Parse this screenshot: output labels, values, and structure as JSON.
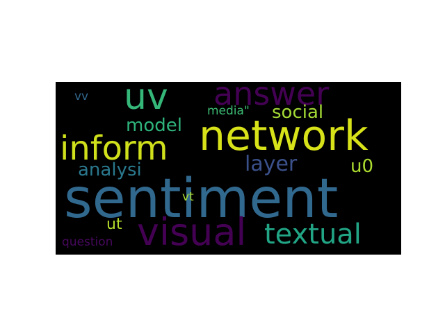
{
  "words": [
    {
      "key": "sentiment",
      "text": "sentiment",
      "color": "#31688e"
    },
    {
      "key": "network",
      "text": "network",
      "color": "#d8e219"
    },
    {
      "key": "inform",
      "text": "inform",
      "color": "#d0e11c"
    },
    {
      "key": "visual",
      "text": "visual",
      "color": "#440154"
    },
    {
      "key": "answer",
      "text": "answer",
      "color": "#440154"
    },
    {
      "key": "uv",
      "text": "uv",
      "color": "#35b779"
    },
    {
      "key": "textual",
      "text": "textual",
      "color": "#21a585"
    },
    {
      "key": "layer",
      "text": "layer",
      "color": "#3b518b"
    },
    {
      "key": "analysi",
      "text": "analysi",
      "color": "#2a788e"
    },
    {
      "key": "model",
      "text": "model",
      "color": "#2fb47c"
    },
    {
      "key": "social",
      "text": "social",
      "color": "#a5db36"
    },
    {
      "key": "u0",
      "text": "u0",
      "color": "#addc30"
    },
    {
      "key": "ut",
      "text": "ut",
      "color": "#b5de2b"
    },
    {
      "key": "media",
      "text": "media\"",
      "color": "#3dbc74"
    },
    {
      "key": "question",
      "text": "question",
      "color": "#46085c"
    },
    {
      "key": "vt",
      "text": "vt",
      "color": "#a8db34"
    },
    {
      "key": "vv",
      "text": "vv",
      "color": "#31688e"
    }
  ]
}
